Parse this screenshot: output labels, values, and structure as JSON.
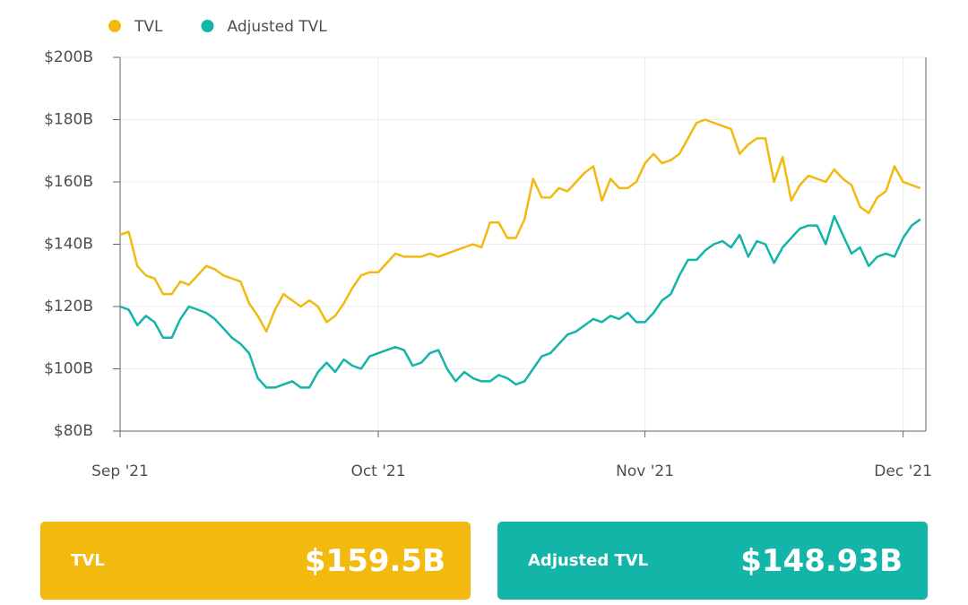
{
  "chart_data": {
    "type": "line",
    "categories": [
      "Sep '21",
      null,
      null,
      null,
      null,
      null,
      null,
      null,
      null,
      null,
      null,
      null,
      null,
      null,
      null,
      null,
      null,
      null,
      null,
      null,
      null,
      null,
      null,
      null,
      null,
      null,
      null,
      null,
      null,
      null,
      "Oct '21",
      null,
      null,
      null,
      null,
      null,
      null,
      null,
      null,
      null,
      null,
      null,
      null,
      null,
      null,
      null,
      null,
      null,
      null,
      null,
      null,
      null,
      null,
      null,
      null,
      null,
      null,
      null,
      null,
      null,
      null,
      "Nov '21",
      null,
      null,
      null,
      null,
      null,
      null,
      null,
      null,
      null,
      null,
      null,
      null,
      null,
      null,
      null,
      null,
      null,
      null,
      null,
      null,
      null,
      null,
      null,
      null,
      null,
      null,
      null,
      null,
      null,
      "Dec '21",
      null,
      null
    ],
    "series": [
      {
        "name": "TVL",
        "color": "#f2b90f",
        "values": [
          143,
          144,
          133,
          130,
          129,
          124,
          124,
          128,
          127,
          130,
          133,
          132,
          130,
          129,
          128,
          121,
          117,
          112,
          119,
          124,
          122,
          120,
          122,
          120,
          115,
          117,
          121,
          126,
          130,
          131,
          131,
          134,
          137,
          136,
          136,
          136,
          137,
          136,
          137,
          138,
          139,
          140,
          139,
          147,
          147,
          142,
          142,
          148,
          161,
          155,
          155,
          158,
          157,
          160,
          163,
          165,
          154,
          161,
          158,
          158,
          160,
          166,
          169,
          166,
          167,
          169,
          174,
          179,
          180,
          179,
          178,
          177,
          169,
          172,
          174,
          174,
          160,
          168,
          154,
          159,
          162,
          161,
          160,
          164,
          161,
          159,
          152,
          150,
          155,
          157,
          165,
          160,
          159,
          158
        ]
      },
      {
        "name": "Adjusted TVL",
        "color": "#12b5a7",
        "values": [
          120,
          119,
          114,
          117,
          115,
          110,
          110,
          116,
          120,
          119,
          118,
          116,
          113,
          110,
          108,
          105,
          97,
          94,
          94,
          95,
          96,
          94,
          94,
          99,
          102,
          99,
          103,
          101,
          100,
          104,
          105,
          106,
          107,
          106,
          101,
          102,
          105,
          106,
          100,
          96,
          99,
          97,
          96,
          96,
          98,
          97,
          95,
          96,
          100,
          104,
          105,
          108,
          111,
          112,
          114,
          116,
          115,
          117,
          116,
          118,
          115,
          115,
          118,
          122,
          124,
          130,
          135,
          135,
          138,
          140,
          141,
          139,
          143,
          136,
          141,
          140,
          134,
          139,
          142,
          145,
          146,
          146,
          140,
          149,
          143,
          137,
          139,
          133,
          136,
          137,
          136,
          142,
          146,
          148
        ]
      }
    ],
    "ylim": [
      80,
      200
    ],
    "yticks": [
      {
        "value": 80,
        "label": "$80B"
      },
      {
        "value": 100,
        "label": "$100B"
      },
      {
        "value": 120,
        "label": "$120B"
      },
      {
        "value": 140,
        "label": "$140B"
      },
      {
        "value": 160,
        "label": "$160B"
      },
      {
        "value": 180,
        "label": "$180B"
      },
      {
        "value": 200,
        "label": "$200B"
      }
    ],
    "grid": true
  },
  "cards": [
    {
      "label": "TVL",
      "value": "$159.5B",
      "color": "#f2b90f"
    },
    {
      "label": "Adjusted TVL",
      "value": "$148.93B",
      "color": "#12b5a7"
    }
  ]
}
